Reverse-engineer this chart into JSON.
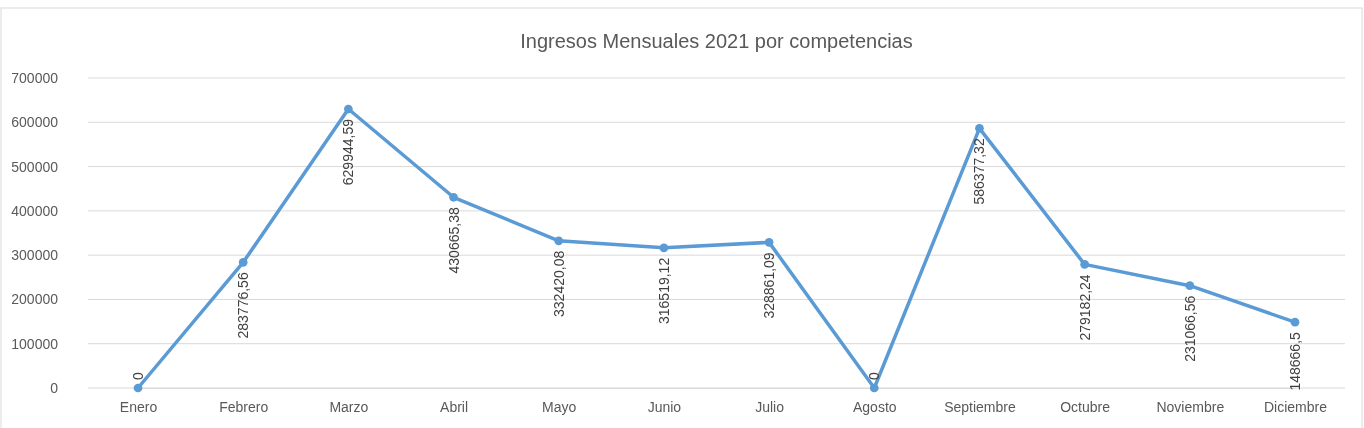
{
  "chart_data": {
    "type": "line",
    "title": "Ingresos Mensuales 2021 por competencias",
    "categories": [
      "Enero",
      "Febrero",
      "Marzo",
      "Abril",
      "Mayo",
      "Junio",
      "Julio",
      "Agosto",
      "Septiembre",
      "Octubre",
      "Noviembre",
      "Diciembre"
    ],
    "series": [
      {
        "color": "#5b9bd5",
        "values": [
          0,
          283776.56,
          629944.59,
          430665.38,
          332420.08,
          316519.12,
          328861.09,
          0,
          586377.32,
          279182.24,
          231066.56,
          148666.5
        ],
        "value_labels": [
          "0",
          "283776,56",
          "629944,59",
          "430665,38",
          "332420,08",
          "316519,12",
          "328861,09",
          "0",
          "586377,32",
          "279182,24",
          "231066,56",
          "148666,5"
        ]
      }
    ],
    "ylim": [
      0,
      700000
    ],
    "yticks": [
      0,
      100000,
      200000,
      300000,
      400000,
      500000,
      600000,
      700000
    ],
    "grid": "y",
    "marker": "circle",
    "line_style": "solid"
  }
}
